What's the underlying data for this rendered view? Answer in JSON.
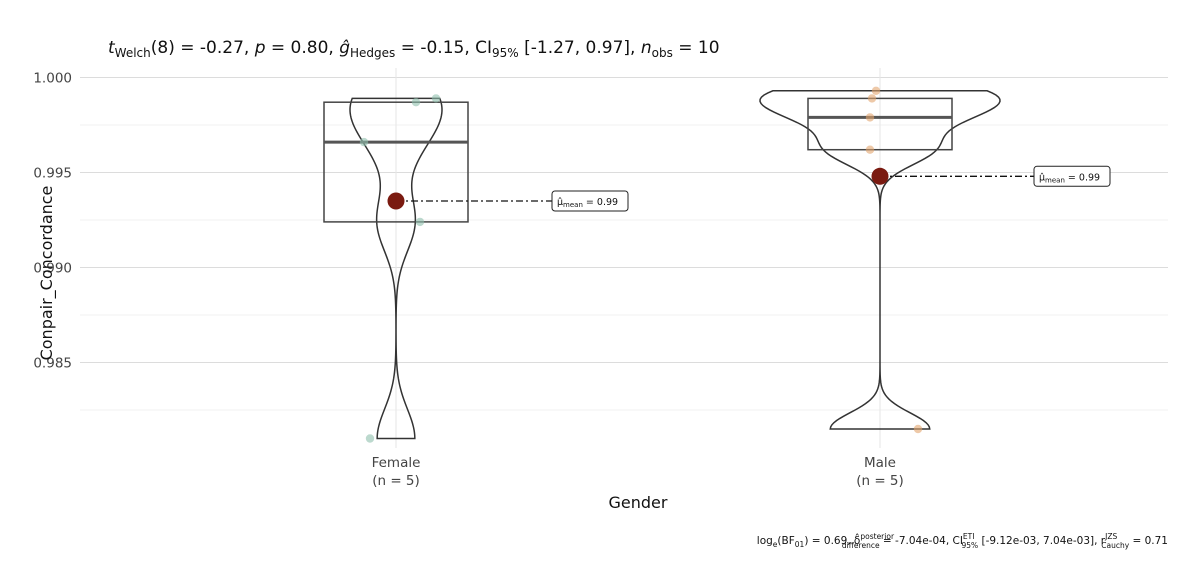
{
  "chart_data": {
    "type": "violin",
    "subtitle": {
      "t_stat": "t",
      "t_sub": "Welch",
      "df": "(8) = -0.27, ",
      "p_sym": "p",
      "p_val": " = 0.80, ",
      "g_sym": "ĝ",
      "g_sub": "Hedges",
      "g_val": " = -0.15, CI",
      "ci_sub": "95%",
      "ci_val": " [-1.27, 0.97], ",
      "n_sym": "n",
      "n_sub": "obs",
      "n_val": " = 10"
    },
    "caption": {
      "bf_pre": "log",
      "bf_e": "e",
      "bf_mid": "(BF",
      "bf_01": "01",
      "bf_val": ") = 0.69, δ̂",
      "post_sup": "posterior",
      "post_sub": "difference",
      "post_val": " = -7.04e-04, CI",
      "eti_sup": "ETI",
      "eti_sub": "95%",
      "eti_val": " [-9.12e-03, 7.04e-03], r",
      "jzs_sup": "JZS",
      "jzs_sub": "Cauchy",
      "jzs_val": " = 0.71"
    },
    "xlabel": "Gender",
    "ylabel": "Conpair_Concordance",
    "ylim": [
      0.9805,
      1.0005
    ],
    "yticks": [
      0.985,
      0.99,
      0.995,
      1.0
    ],
    "ytick_labels": [
      "0.985",
      "0.990",
      "0.995",
      "1.000"
    ],
    "grid": true,
    "categories": [
      "Female",
      "Male"
    ],
    "n_labels": [
      "(n = 5)",
      "(n = 5)"
    ],
    "groups": [
      {
        "name": "Female",
        "color": "#8fbfae",
        "points": [
          0.9989,
          0.9987,
          0.9966,
          0.9924,
          0.981
        ],
        "box": {
          "q1": 0.9924,
          "median": 0.9966,
          "q3": 0.9987,
          "wlow": 0.9924,
          "whigh": 0.9987
        },
        "mean": 0.9935,
        "mean_label": "μ̂mean = 0.99",
        "mean_label_main": "μ̂",
        "mean_label_sub": "mean",
        "mean_label_val": " = 0.99"
      },
      {
        "name": "Male",
        "color": "#e3a56e",
        "points": [
          0.9993,
          0.9989,
          0.9979,
          0.9962,
          0.9815
        ],
        "box": {
          "q1": 0.9962,
          "median": 0.9979,
          "q3": 0.9989,
          "wlow": 0.9962,
          "whigh": 0.9989
        },
        "mean": 0.9948,
        "mean_label": "μ̂mean = 0.99",
        "mean_label_main": "μ̂",
        "mean_label_sub": "mean",
        "mean_label_val": " = 0.99"
      }
    ],
    "mean_color": "#7a1a10",
    "violin_color": "#333333",
    "box_color": "#444444"
  }
}
